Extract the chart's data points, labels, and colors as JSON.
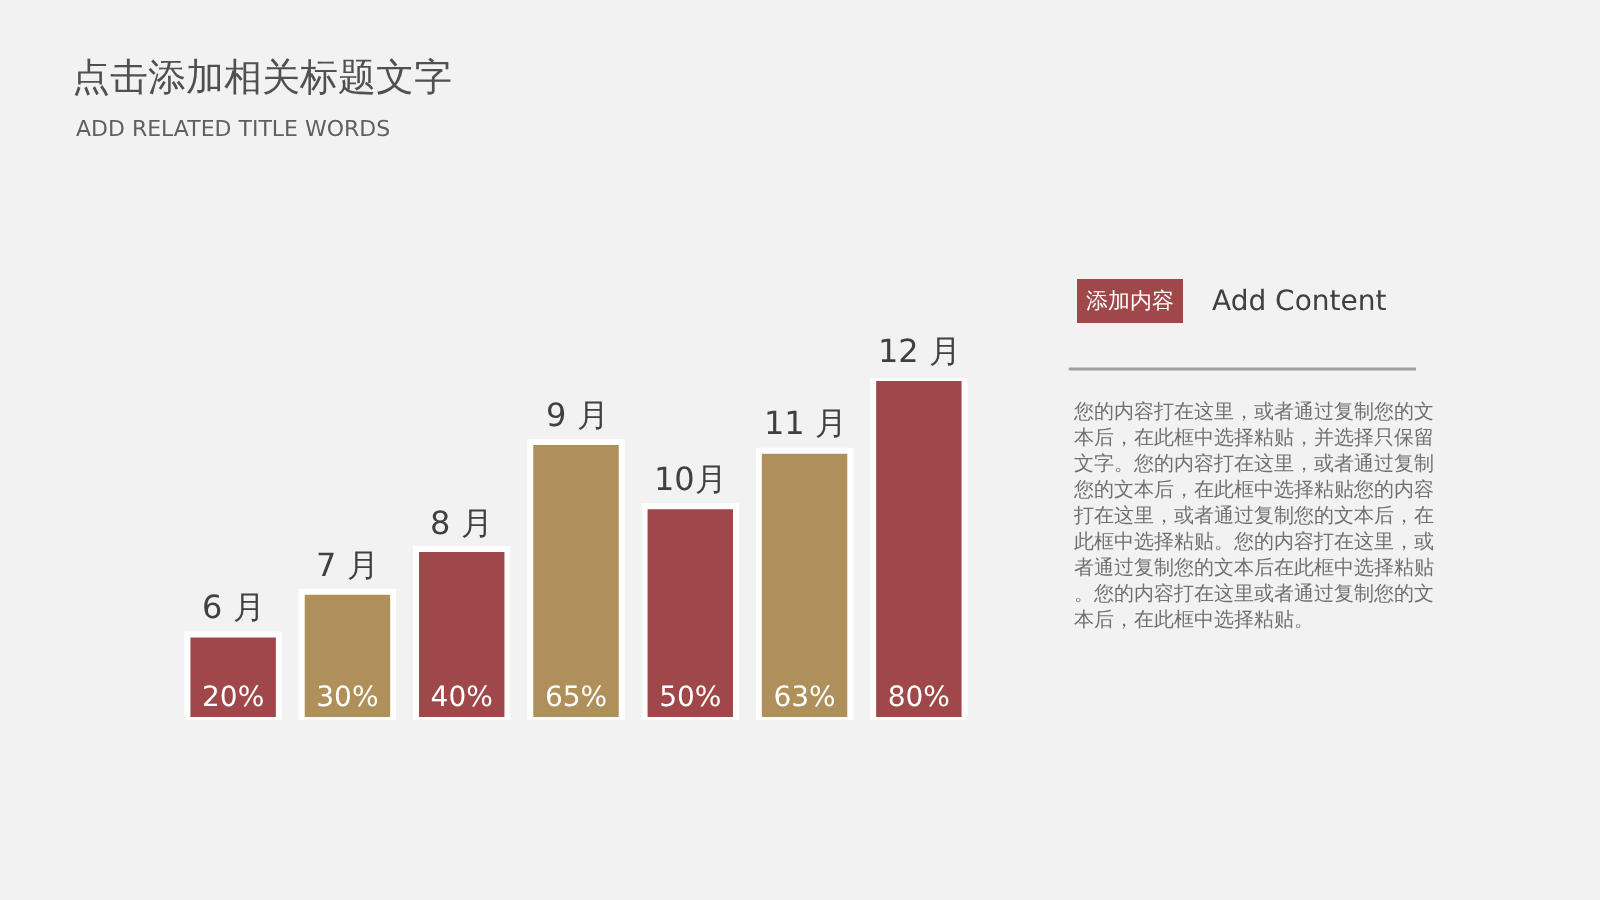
{
  "chart_data": {
    "type": "bar",
    "title": "点击添加相关标题文字",
    "subtitle": "ADD RELATED TITLE WORDS",
    "categories": [
      "6 月",
      "7 月",
      "8 月",
      "9 月",
      "10月",
      "11 月",
      "12 月"
    ],
    "values": [
      20,
      30,
      40,
      65,
      50,
      63,
      80
    ],
    "value_labels": [
      "20%",
      "30%",
      "40%",
      "65%",
      "50%",
      "63%",
      "80%"
    ],
    "colors": [
      "#a0474a",
      "#b0905a",
      "#a0474a",
      "#b0905a",
      "#a0474a",
      "#b0905a",
      "#a0474a"
    ],
    "annotations": [
      "添加内容",
      "Add Content",
      "您的内容打在这里，或者通过复制您的文本后，在此框中选择粘贴，并选择只保留文字。您的内容打在这里，或者通过复制您的文本后，在此框中选择粘贴您的内容打在这里，或者通过复制您的文本后，在此框中选择粘贴。您的内容打在这里，或者通过复制您的文本后在此框中选择粘贴。您的内容打在这里或者通过复制您的文本后，在此框中选择粘贴。"
    ]
  }
}
